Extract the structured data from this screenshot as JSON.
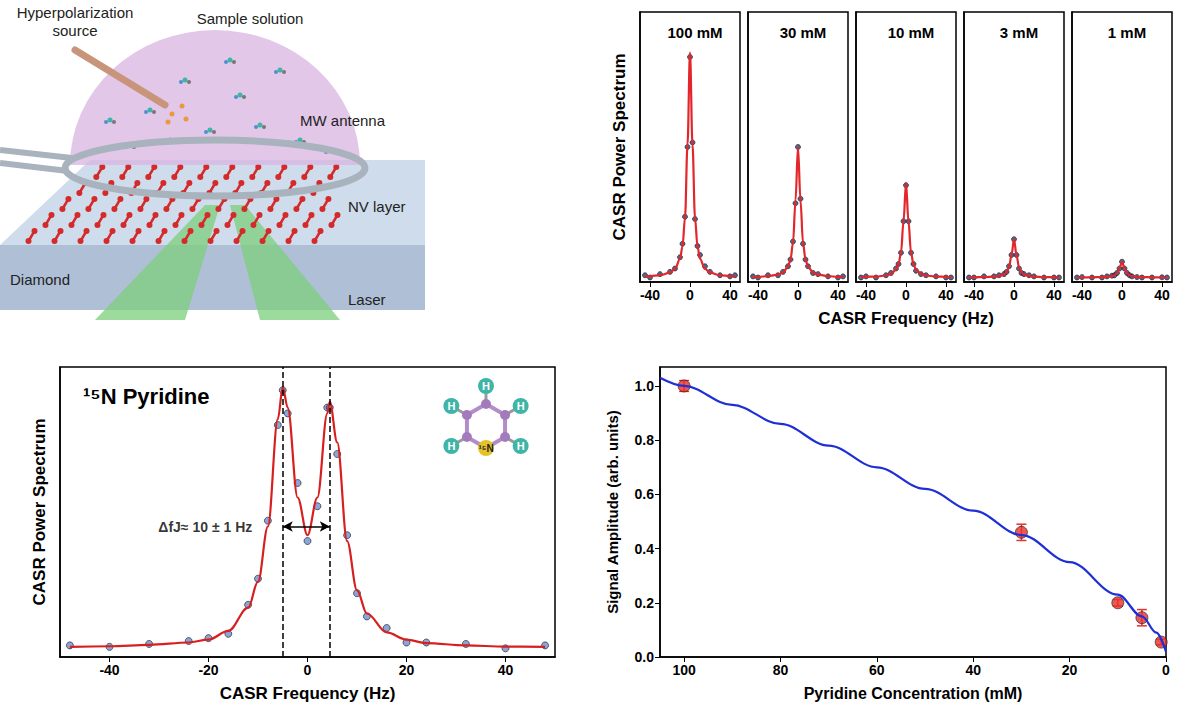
{
  "diagram": {
    "labels": {
      "source": "Hyperpolarization source",
      "sample": "Sample solution",
      "antenna": "MW antenna",
      "diamond": "Diamond",
      "nv": "NV layer",
      "laser": "Laser"
    }
  },
  "chart_data": [
    {
      "type": "line",
      "xlabel": "CASR Frequency (Hz)",
      "ylabel": "CASR Power Spectrum",
      "xlim": [
        -50,
        50
      ],
      "xticks": [
        -40,
        0,
        40
      ],
      "ylim": [
        0,
        1.2
      ],
      "tick_labels": "x",
      "grid": false,
      "x": [
        -45,
        -40,
        -30,
        -20,
        -15,
        -10,
        -7.5,
        -5,
        -2.5,
        0,
        2.5,
        5,
        7.5,
        10,
        15,
        20,
        30,
        40,
        45
      ],
      "panels": [
        {
          "title": "100 mM",
          "series": [
            {
              "type": "scatter",
              "marker": "circle",
              "color": "#2c3e7a",
              "values": [
                0.03,
                0.02,
                0.035,
                0.045,
                0.06,
                0.11,
                0.17,
                0.29,
                0.6,
                1.0,
                0.62,
                0.28,
                0.16,
                0.12,
                0.07,
                0.045,
                0.03,
                0.025,
                0.03
              ]
            },
            {
              "color": "#e3262a",
              "values": [
                0.024,
                0.026,
                0.03,
                0.042,
                0.058,
                0.103,
                0.158,
                0.285,
                0.61,
                1.02,
                0.61,
                0.285,
                0.158,
                0.103,
                0.058,
                0.042,
                0.03,
                0.026,
                0.024
              ]
            }
          ]
        },
        {
          "title": "30 mM",
          "series": [
            {
              "type": "scatter",
              "marker": "circle",
              "color": "#2c3e7a",
              "values": [
                0.025,
                0.02,
                0.03,
                0.03,
                0.045,
                0.07,
                0.1,
                0.18,
                0.35,
                0.6,
                0.37,
                0.17,
                0.1,
                0.07,
                0.04,
                0.035,
                0.025,
                0.02,
                0.025
              ]
            },
            {
              "color": "#e3262a",
              "values": [
                0.022,
                0.023,
                0.026,
                0.033,
                0.042,
                0.068,
                0.1,
                0.174,
                0.362,
                0.6,
                0.362,
                0.174,
                0.1,
                0.068,
                0.042,
                0.033,
                0.026,
                0.023,
                0.022
              ]
            }
          ]
        },
        {
          "title": "10 mM",
          "series": [
            {
              "type": "scatter",
              "marker": "circle",
              "color": "#2c3e7a",
              "values": [
                0.02,
                0.025,
                0.02,
                0.03,
                0.04,
                0.06,
                0.08,
                0.13,
                0.27,
                0.43,
                0.27,
                0.13,
                0.08,
                0.05,
                0.035,
                0.03,
                0.025,
                0.02,
                0.02
              ]
            },
            {
              "color": "#e3262a",
              "values": [
                0.022,
                0.023,
                0.024,
                0.029,
                0.036,
                0.055,
                0.078,
                0.131,
                0.268,
                0.44,
                0.268,
                0.131,
                0.078,
                0.055,
                0.036,
                0.029,
                0.024,
                0.023,
                0.022
              ]
            }
          ]
        },
        {
          "title": "3 mM",
          "series": [
            {
              "type": "scatter",
              "marker": "circle",
              "color": "#2c3e7a",
              "values": [
                0.02,
                0.02,
                0.025,
                0.025,
                0.03,
                0.035,
                0.045,
                0.07,
                0.12,
                0.19,
                0.12,
                0.06,
                0.04,
                0.035,
                0.03,
                0.025,
                0.02,
                0.02,
                0.02
              ]
            },
            {
              "color": "#e3262a",
              "values": [
                0.021,
                0.021,
                0.022,
                0.024,
                0.026,
                0.034,
                0.043,
                0.065,
                0.12,
                0.19,
                0.12,
                0.065,
                0.043,
                0.034,
                0.026,
                0.024,
                0.022,
                0.021,
                0.021
              ]
            }
          ]
        },
        {
          "title": "1 mM",
          "series": [
            {
              "type": "scatter",
              "marker": "circle",
              "color": "#2c3e7a",
              "values": [
                0.02,
                0.022,
                0.02,
                0.02,
                0.025,
                0.028,
                0.03,
                0.04,
                0.06,
                0.09,
                0.06,
                0.04,
                0.03,
                0.025,
                0.022,
                0.02,
                0.02,
                0.021,
                0.02
              ]
            },
            {
              "color": "#e3262a",
              "values": [
                0.02,
                0.02,
                0.021,
                0.022,
                0.023,
                0.026,
                0.03,
                0.039,
                0.061,
                0.09,
                0.061,
                0.039,
                0.03,
                0.026,
                0.023,
                0.022,
                0.021,
                0.02,
                0.02
              ]
            }
          ]
        }
      ]
    },
    {
      "type": "line",
      "title": "¹⁵N Pyridine",
      "xlabel": "CASR Frequency (Hz)",
      "ylabel": "CASR Power Spectrum",
      "xlim": [
        -50,
        50
      ],
      "xticks": [
        -40,
        -20,
        0,
        20,
        40
      ],
      "ylim": [
        0,
        1
      ],
      "tick_labels": "x",
      "grid": false,
      "peaks": [
        -5,
        4.5
      ],
      "annotation": "ΔfJ≈ 10 ± 1 Hz",
      "inset": {
        "atoms": [
          "H",
          "H",
          "H",
          "H",
          "H"
        ],
        "label": "¹⁵N"
      },
      "x": [
        -48,
        -40,
        -32,
        -24,
        -20,
        -16,
        -12,
        -10,
        -8,
        -6,
        -5,
        -4,
        -2,
        0,
        2,
        4,
        4.5,
        6,
        8,
        10,
        12,
        16,
        20,
        24,
        32,
        40,
        48
      ],
      "series": [
        {
          "type": "scatter",
          "marker": "circle",
          "color": "#6f8fcf",
          "values": [
            0.04,
            0.035,
            0.045,
            0.055,
            0.065,
            0.08,
            0.18,
            0.27,
            0.47,
            0.8,
            0.92,
            0.84,
            0.6,
            0.4,
            0.52,
            0.86,
            0.86,
            0.7,
            0.42,
            0.22,
            0.14,
            0.1,
            0.05,
            0.05,
            0.045,
            0.03,
            0.04
          ]
        },
        {
          "color": "#d62020",
          "values": [
            0.035,
            0.037,
            0.042,
            0.05,
            0.06,
            0.09,
            0.17,
            0.26,
            0.45,
            0.82,
            0.93,
            0.86,
            0.55,
            0.42,
            0.55,
            0.84,
            0.88,
            0.74,
            0.4,
            0.23,
            0.15,
            0.085,
            0.06,
            0.048,
            0.04,
            0.036,
            0.035
          ]
        }
      ]
    },
    {
      "type": "scatter",
      "xlabel": "Pyridine Concentration (mM)",
      "ylabel": "Signal Amplitude (arb. units)",
      "xlim": [
        105,
        0
      ],
      "xticks": [
        100,
        80,
        60,
        40,
        20,
        0
      ],
      "ylim": [
        0,
        1.07
      ],
      "yticks": [
        {
          "value": 0,
          "label": "0.0"
        },
        {
          "value": 0.2,
          "label": "0.2"
        },
        {
          "value": 0.4,
          "label": "0.4"
        },
        {
          "value": 0.6,
          "label": "0.6"
        },
        {
          "value": 0.8,
          "label": "0.8"
        },
        {
          "value": 1,
          "label": "1.0"
        }
      ],
      "grid": false,
      "series": [
        {
          "type": "line",
          "color": "#1f2fd6",
          "x": [
            0,
            2,
            5,
            10,
            20,
            30,
            40,
            50,
            60,
            70,
            80,
            90,
            100,
            105
          ],
          "values": [
            0.02,
            0.09,
            0.15,
            0.23,
            0.35,
            0.45,
            0.54,
            0.62,
            0.7,
            0.78,
            0.86,
            0.93,
            1.0,
            1.03
          ]
        },
        {
          "type": "scatter",
          "marker": "circle",
          "color": "#e8312a",
          "x": [
            100,
            30,
            10,
            5,
            1
          ],
          "values": [
            1.0,
            0.46,
            0.2,
            0.145,
            0.055
          ],
          "errors": [
            0.02,
            0.03,
            0.012,
            0.03,
            0.01
          ]
        }
      ]
    }
  ]
}
